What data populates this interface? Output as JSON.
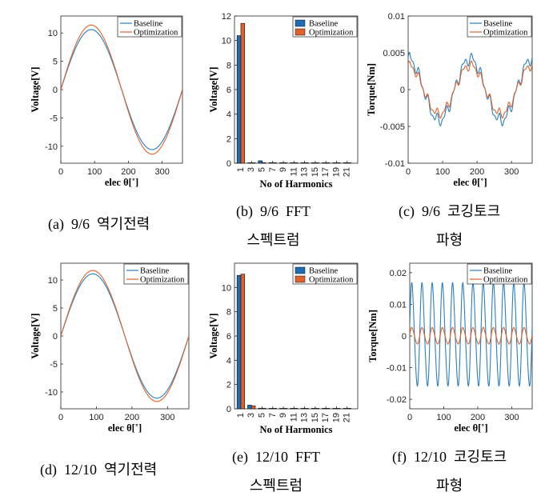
{
  "chart_data": [
    {
      "type": "line",
      "caption": "(a)  9/6  역기전력",
      "xlabel": "elec θ[˚]",
      "ylabel": "Voltage[V]",
      "xlim": [
        0,
        360
      ],
      "ylim": [
        -13,
        13
      ],
      "xticks": [
        "0",
        "100",
        "200",
        "300"
      ],
      "yticks": [
        "10",
        "5",
        "0",
        "-5",
        "-10"
      ],
      "legend": [
        "Baseline",
        "Optimization"
      ],
      "series": [
        {
          "name": "Baseline",
          "shape": "sine",
          "amplitude": 10.6,
          "color": "#2a7fc2"
        },
        {
          "name": "Optimization",
          "shape": "sine",
          "amplitude": 11.4,
          "color": "#e0612b"
        }
      ]
    },
    {
      "type": "bar",
      "caption": "(b)  9/6  FFT\n스펙트럼",
      "xlabel": "No of Harmonics",
      "ylabel": "Voltage[V]",
      "ylim": [
        0,
        12
      ],
      "yticks": [
        "12",
        "10",
        "8",
        "6",
        "4",
        "2",
        "0"
      ],
      "categories": [
        "1",
        "3",
        "5",
        "7",
        "9",
        "11",
        "13",
        "15",
        "17",
        "19",
        "21"
      ],
      "legend": [
        "Baseline",
        "Optimization"
      ],
      "series": [
        {
          "name": "Baseline",
          "color": "#1f6cb5",
          "values": [
            10.4,
            0.02,
            0.2,
            0.05,
            0.03,
            0.02,
            0.02,
            0.02,
            0.02,
            0.02,
            0.02
          ]
        },
        {
          "name": "Optimization",
          "color": "#e0612b",
          "values": [
            11.4,
            0.02,
            0.05,
            0.03,
            0.02,
            0.02,
            0.02,
            0.02,
            0.02,
            0.02,
            0.02
          ]
        }
      ]
    },
    {
      "type": "line",
      "caption": "(c)  9/6  코깅토크\n파형",
      "xlabel": "elec θ[˚]",
      "ylabel": "Torque[Nm]",
      "xlim": [
        0,
        360
      ],
      "ylim": [
        -0.01,
        0.01
      ],
      "xticks": [
        "0",
        "100",
        "200",
        "300"
      ],
      "yticks": [
        "0.01",
        "0.005",
        "0",
        "-0.005",
        "-0.01"
      ],
      "legend": [
        "Baseline",
        "Optimization"
      ],
      "series": [
        {
          "name": "Baseline",
          "shape": "cogging9",
          "amplitude": 0.0042,
          "color": "#2a7fc2"
        },
        {
          "name": "Optimization",
          "shape": "cogging9",
          "amplitude": 0.0033,
          "color": "#e0612b"
        }
      ]
    },
    {
      "type": "line",
      "caption": "(d)  12/10  역기전력",
      "xlabel": "elec θ[˚]",
      "ylabel": "Voltage[V]",
      "xlim": [
        0,
        360
      ],
      "ylim": [
        -13,
        13
      ],
      "xticks": [
        "0",
        "100",
        "200",
        "300"
      ],
      "yticks": [
        "10",
        "5",
        "0",
        "-5",
        "-10"
      ],
      "legend": [
        "Baseline",
        "Optimization"
      ],
      "series": [
        {
          "name": "Baseline",
          "shape": "sine",
          "amplitude": 11.1,
          "color": "#2a7fc2"
        },
        {
          "name": "Optimization",
          "shape": "sine",
          "amplitude": 11.7,
          "color": "#e0612b"
        }
      ]
    },
    {
      "type": "bar",
      "caption": "(e)  12/10  FFT\n스펙트럼",
      "xlabel": "No of Harmonics",
      "ylabel": "Voltage[V]",
      "ylim": [
        0,
        12
      ],
      "yticks": [
        "10",
        "8",
        "6",
        "4",
        "2",
        "0"
      ],
      "categories": [
        "1",
        "3",
        "5",
        "7",
        "9",
        "11",
        "13",
        "15",
        "17",
        "19",
        "21"
      ],
      "legend": [
        "Baseline",
        "Optimization"
      ],
      "series": [
        {
          "name": "Baseline",
          "color": "#1f6cb5",
          "values": [
            11.0,
            0.3,
            0.05,
            0.03,
            0.02,
            0.02,
            0.02,
            0.02,
            0.02,
            0.02,
            0.02
          ]
        },
        {
          "name": "Optimization",
          "color": "#e0612b",
          "values": [
            11.1,
            0.25,
            0.05,
            0.03,
            0.02,
            0.02,
            0.02,
            0.02,
            0.02,
            0.02,
            0.02
          ]
        }
      ]
    },
    {
      "type": "line",
      "caption": "(f)  12/10  코깅토크\n파형",
      "xlabel": "elec θ[˚]",
      "ylabel": "Torque[Nm]",
      "xlim": [
        0,
        360
      ],
      "ylim": [
        -0.023,
        0.023
      ],
      "xticks": [
        "0",
        "100",
        "200",
        "300"
      ],
      "yticks": [
        "0.02",
        "0.01",
        "0",
        "-0.01",
        "-0.02"
      ],
      "legend": [
        "Baseline",
        "Optimization"
      ],
      "series": [
        {
          "name": "Baseline",
          "shape": "cogging12",
          "amplitude": 0.0175,
          "color": "#2a7fc2"
        },
        {
          "name": "Optimization",
          "shape": "cogging12",
          "amplitude": 0.0028,
          "color": "#e0612b"
        }
      ]
    }
  ]
}
